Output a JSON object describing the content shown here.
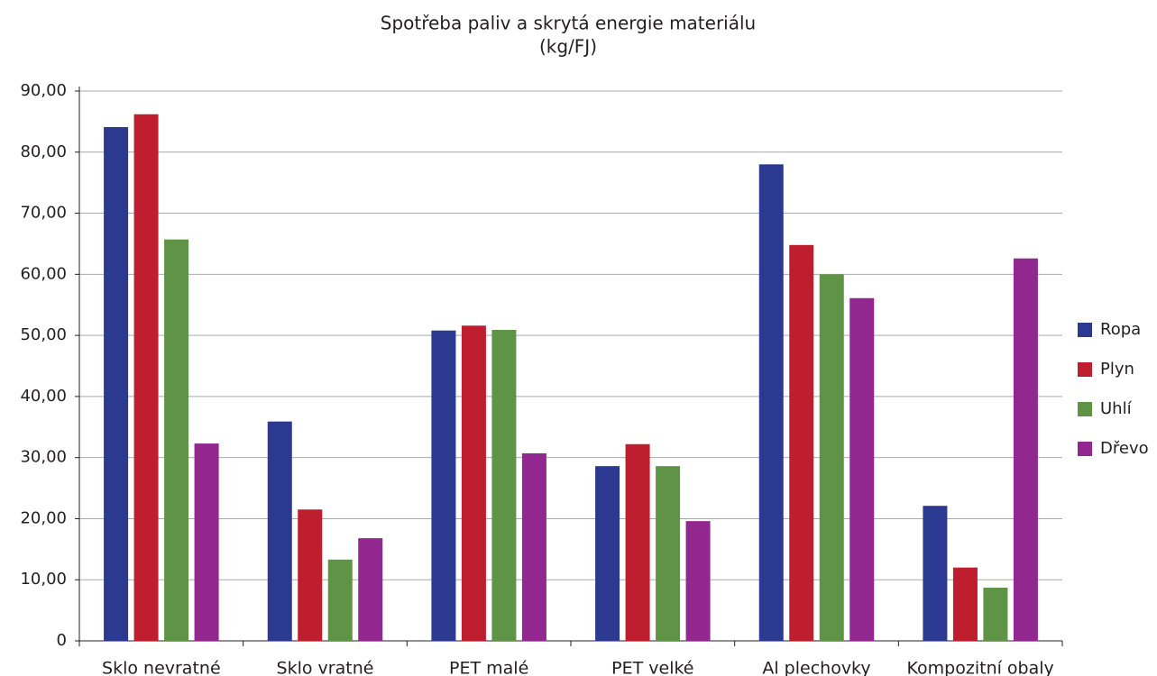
{
  "chart_data": {
    "type": "bar",
    "title": "Spotřeba paliv a skrytá energie materiálu",
    "subtitle": "(kg/FJ)",
    "categories": [
      "Sklo nevratné",
      "Sklo vratné",
      "PET malé",
      "PET velké",
      "Al plechovky",
      "Kompozitní obaly"
    ],
    "series": [
      {
        "name": "Ropa",
        "color": "#2b3990",
        "values": [
          84.1,
          35.9,
          50.8,
          28.6,
          78.0,
          22.1
        ]
      },
      {
        "name": "Plyn",
        "color": "#be1e2d",
        "values": [
          86.2,
          21.5,
          51.6,
          32.2,
          64.8,
          12.0
        ]
      },
      {
        "name": "Uhlí",
        "color": "#5f9446",
        "values": [
          65.7,
          13.3,
          50.9,
          28.6,
          60.0,
          8.7
        ]
      },
      {
        "name": "Dřevo",
        "color": "#92278f",
        "values": [
          32.3,
          16.8,
          30.7,
          19.6,
          56.1,
          62.6
        ]
      }
    ],
    "ylim": [
      0,
      90
    ],
    "yticks": [
      0,
      {
        "value": 10,
        "label": "10,00"
      },
      {
        "value": 20,
        "label": "20,00"
      },
      {
        "value": 30,
        "label": "30,00"
      },
      {
        "value": 40,
        "label": "40,00"
      },
      {
        "value": 50,
        "label": "50,00"
      },
      {
        "value": 60,
        "label": "60,00"
      },
      {
        "value": 70,
        "label": "70,00"
      },
      {
        "value": 80,
        "label": "80,00"
      },
      {
        "value": 90,
        "label": "90,00"
      }
    ],
    "grid": true,
    "legend": "right"
  }
}
